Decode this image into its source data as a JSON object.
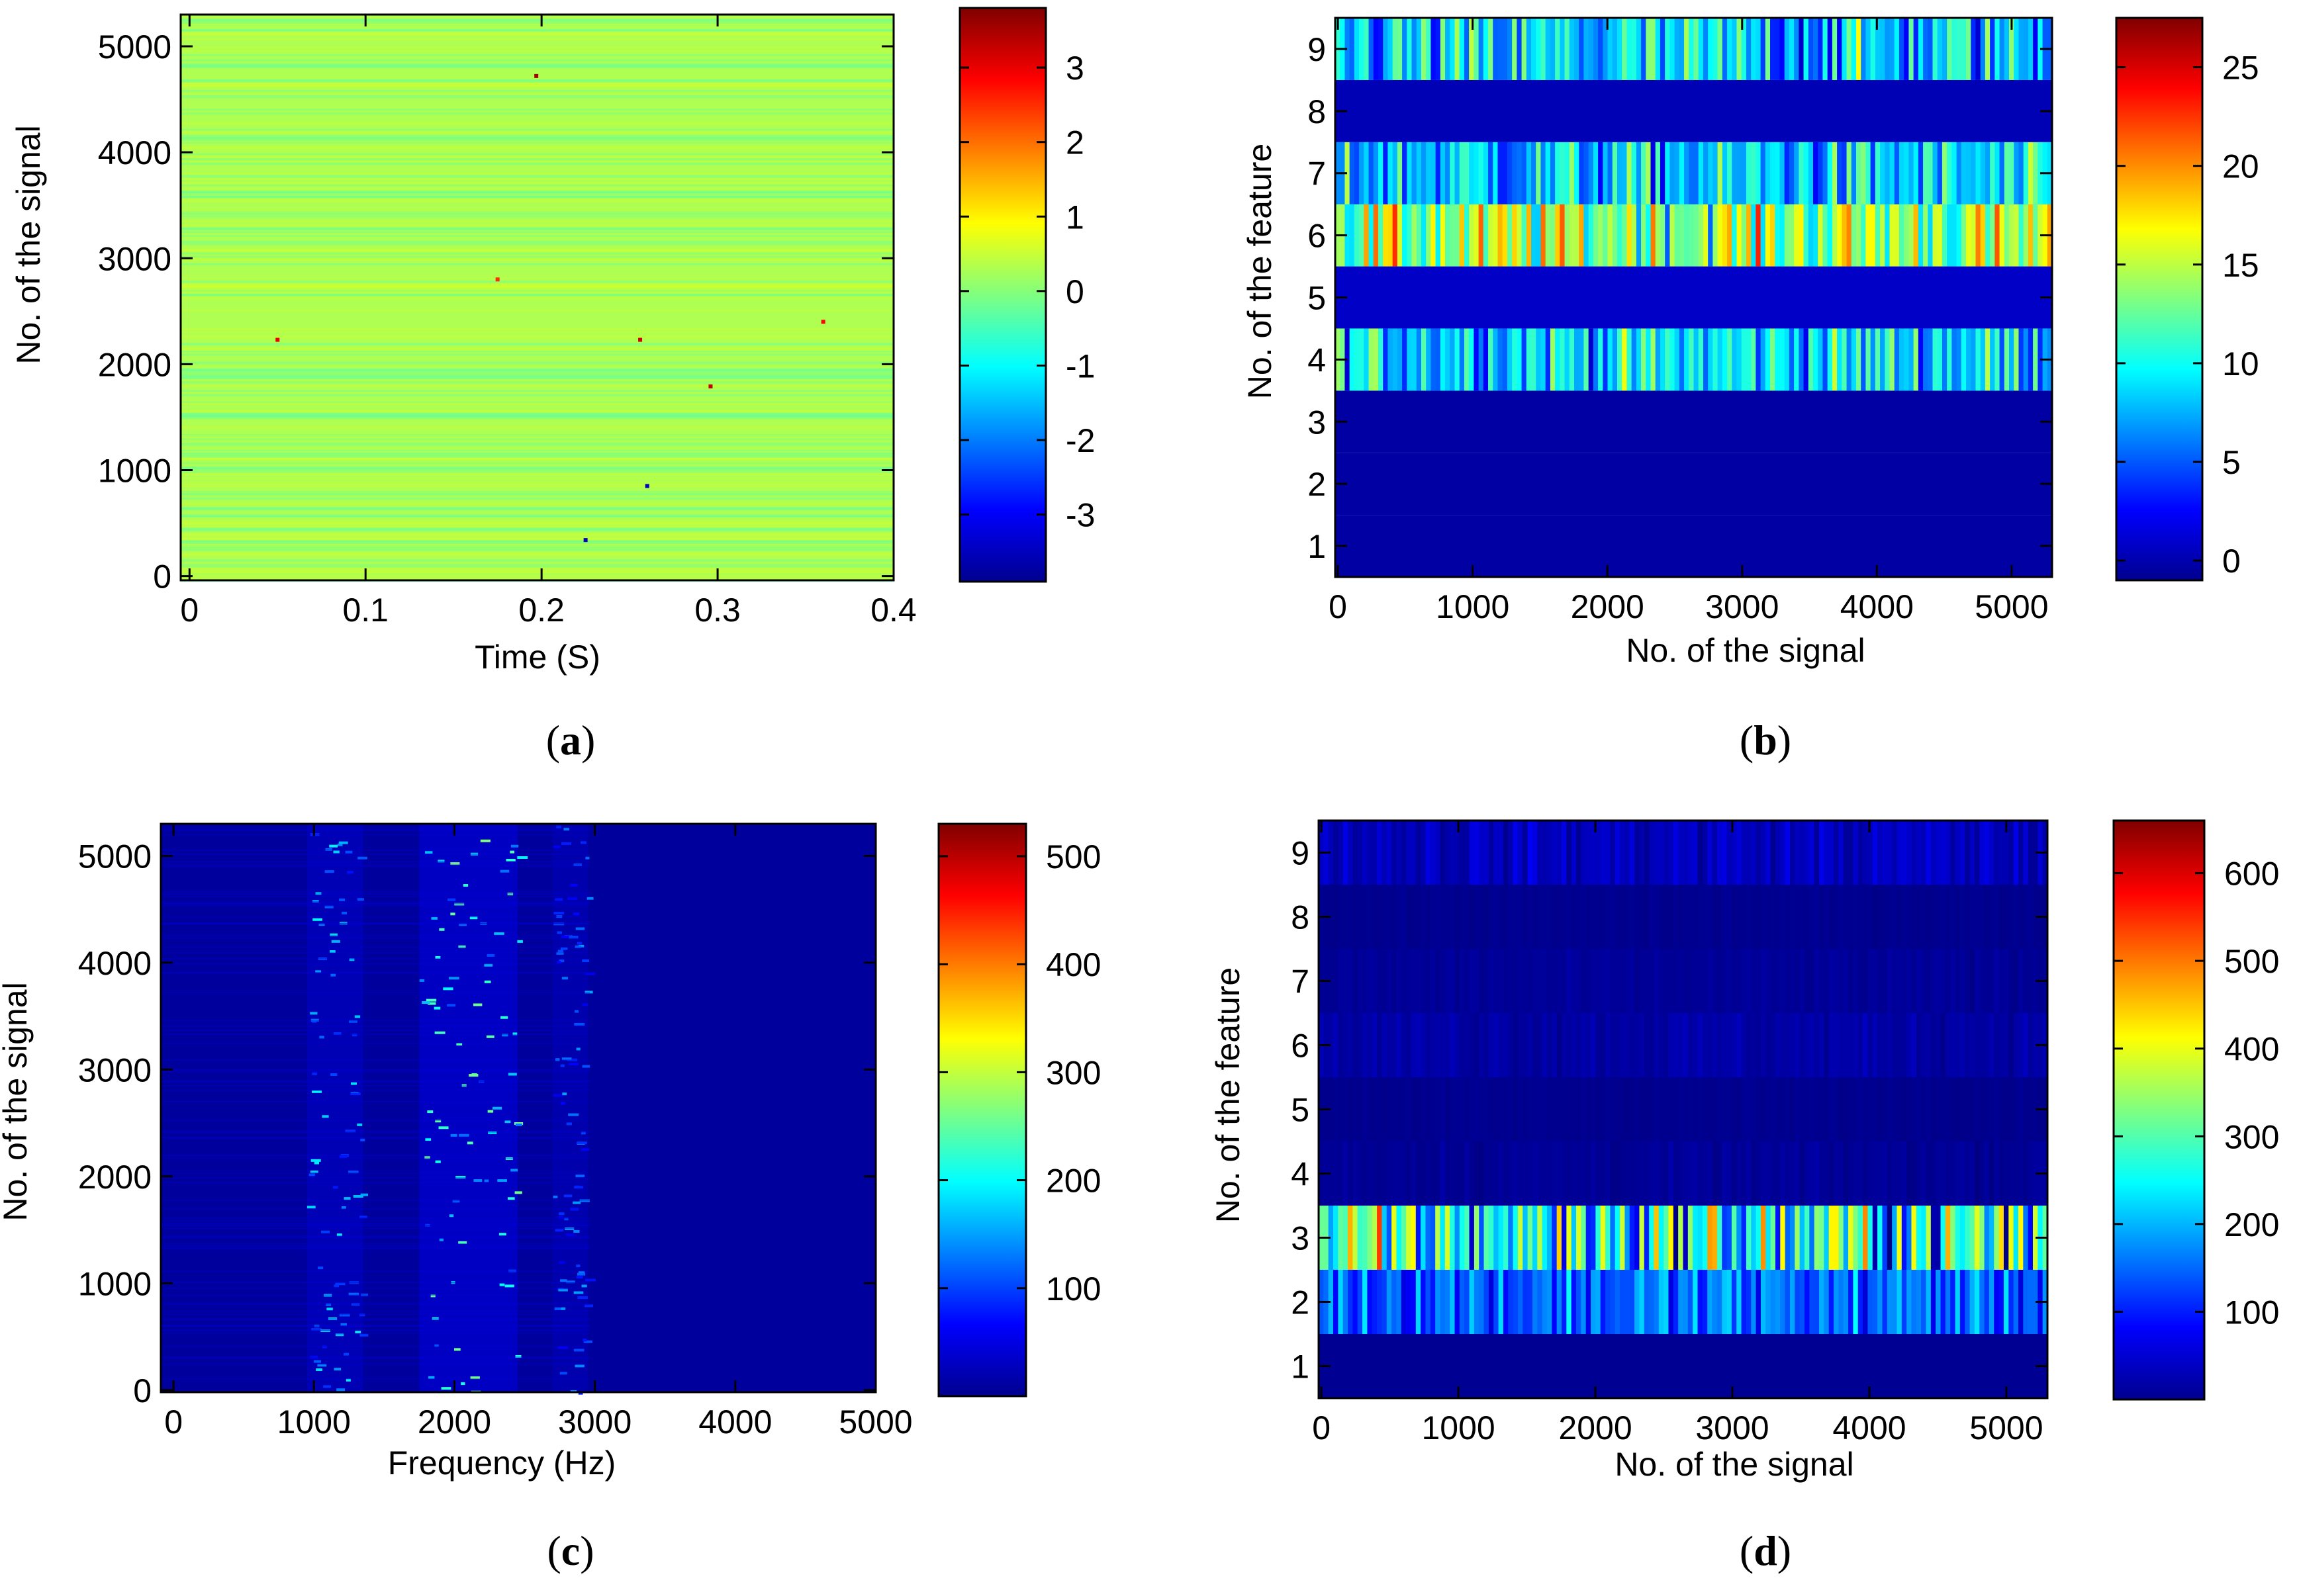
{
  "chart_data": [
    {
      "type": "heatmap",
      "panel": "a",
      "caption": "(a)",
      "caption_parts": [
        "(",
        "a",
        ")"
      ],
      "xlabel": "Time (S)",
      "ylabel": "No. of the signal",
      "xlim": [
        -0.005,
        0.4
      ],
      "ylim": [
        -40,
        5300
      ],
      "xticks": [
        0,
        0.1,
        0.2,
        0.3,
        0.4
      ],
      "xtick_labels": [
        "0",
        "0.1",
        "0.2",
        "0.3",
        "0.4"
      ],
      "yticks": [
        0,
        1000,
        2000,
        3000,
        4000,
        5000
      ],
      "ytick_labels": [
        "0",
        "1000",
        "2000",
        "3000",
        "4000",
        "5000"
      ],
      "colorbar": {
        "range": [
          -3.9,
          3.8
        ],
        "ticks": [
          -3,
          -2,
          -1,
          0,
          1,
          2,
          3
        ],
        "tick_labels": [
          "-3",
          "-2",
          "-1",
          "0",
          "1",
          "2",
          "3"
        ]
      },
      "background_value": 0.3,
      "description_values": "random signal amplitude, mostly near 0 with sparse outliers",
      "outliers": [
        {
          "x": 0.197,
          "y": 4720,
          "value": 3.5
        },
        {
          "x": 0.05,
          "y": 2230,
          "value": 3.0
        },
        {
          "x": 0.256,
          "y": 2230,
          "value": 3.2
        },
        {
          "x": 0.296,
          "y": 1790,
          "value": 3.3
        },
        {
          "x": 0.26,
          "y": 850,
          "value": -3.4
        },
        {
          "x": 0.225,
          "y": 340,
          "value": -3.5
        },
        {
          "x": 0.175,
          "y": 2800,
          "value": 2.5
        },
        {
          "x": 0.36,
          "y": 2400,
          "value": 2.8
        }
      ]
    },
    {
      "type": "heatmap",
      "panel": "b",
      "caption": "(b)",
      "caption_parts": [
        "(",
        "b",
        ")"
      ],
      "xlabel": "No. of the signal",
      "ylabel": "No. of the feature",
      "xlim": [
        -20,
        5300
      ],
      "ylim": [
        0.5,
        9.5
      ],
      "xticks": [
        0,
        1000,
        2000,
        3000,
        4000,
        5000
      ],
      "xtick_labels": [
        "0",
        "1000",
        "2000",
        "3000",
        "4000",
        "5000"
      ],
      "yticks": [
        1,
        2,
        3,
        4,
        5,
        6,
        7,
        8,
        9
      ],
      "ytick_labels": [
        "1",
        "2",
        "3",
        "4",
        "5",
        "6",
        "7",
        "8",
        "9"
      ],
      "colorbar": {
        "range": [
          -1,
          27.5
        ],
        "ticks": [
          0,
          5,
          10,
          15,
          20,
          25
        ],
        "tick_labels": [
          "0",
          "5",
          "10",
          "15",
          "20",
          "25"
        ]
      },
      "features": [
        {
          "feature": 1,
          "mean": 0,
          "spread": 0
        },
        {
          "feature": 2,
          "mean": 0,
          "spread": 0
        },
        {
          "feature": 3,
          "mean": 0,
          "spread": 0
        },
        {
          "feature": 4,
          "mean": 9,
          "spread": 6
        },
        {
          "feature": 5,
          "mean": 1,
          "spread": 0
        },
        {
          "feature": 6,
          "mean": 14,
          "spread": 7
        },
        {
          "feature": 7,
          "mean": 8,
          "spread": 6
        },
        {
          "feature": 8,
          "mean": 0.5,
          "spread": 0
        },
        {
          "feature": 9,
          "mean": 8,
          "spread": 7
        }
      ]
    },
    {
      "type": "heatmap",
      "panel": "c",
      "caption": "(c)",
      "caption_parts": [
        "(",
        "c",
        ")"
      ],
      "xlabel": "Frequency (Hz)",
      "ylabel": "No. of the signal",
      "xlim": [
        -90,
        5000
      ],
      "ylim": [
        -20,
        5300
      ],
      "xticks": [
        0,
        1000,
        2000,
        3000,
        4000,
        5000
      ],
      "xtick_labels": [
        "0",
        "1000",
        "2000",
        "3000",
        "4000",
        "5000"
      ],
      "yticks": [
        0,
        1000,
        2000,
        3000,
        4000,
        5000
      ],
      "ytick_labels": [
        "0",
        "1000",
        "2000",
        "3000",
        "4000",
        "5000"
      ],
      "colorbar": {
        "range": [
          0,
          530
        ],
        "ticks": [
          100,
          200,
          300,
          400,
          500
        ],
        "tick_labels": [
          "100",
          "200",
          "300",
          "400",
          "500"
        ]
      },
      "background_value": 15,
      "energy_bands_hz": [
        {
          "from": 950,
          "to": 1350,
          "level": 70
        },
        {
          "from": 1750,
          "to": 2450,
          "level": 95
        },
        {
          "from": 2700,
          "to": 2950,
          "level": 55
        }
      ]
    },
    {
      "type": "heatmap",
      "panel": "d",
      "caption": "(d)",
      "caption_parts": [
        "(",
        "d",
        ")"
      ],
      "xlabel": "No. of the signal",
      "ylabel": "No. of the feature",
      "xlim": [
        -20,
        5300
      ],
      "ylim": [
        0.5,
        9.5
      ],
      "xticks": [
        0,
        1000,
        2000,
        3000,
        4000,
        5000
      ],
      "xtick_labels": [
        "0",
        "1000",
        "2000",
        "3000",
        "4000",
        "5000"
      ],
      "yticks": [
        1,
        2,
        3,
        4,
        5,
        6,
        7,
        8,
        9
      ],
      "ytick_labels": [
        "1",
        "2",
        "3",
        "4",
        "5",
        "6",
        "7",
        "8",
        "9"
      ],
      "colorbar": {
        "range": [
          0,
          660
        ],
        "ticks": [
          100,
          200,
          300,
          400,
          500,
          600
        ],
        "tick_labels": [
          "100",
          "200",
          "300",
          "400",
          "500",
          "600"
        ]
      },
      "features": [
        {
          "feature": 1,
          "mean": 12,
          "spread": 0
        },
        {
          "feature": 2,
          "mean": 150,
          "spread": 90
        },
        {
          "feature": 3,
          "mean": 260,
          "spread": 230
        },
        {
          "feature": 4,
          "mean": 15,
          "spread": 10
        },
        {
          "feature": 5,
          "mean": 10,
          "spread": 4
        },
        {
          "feature": 6,
          "mean": 25,
          "spread": 15
        },
        {
          "feature": 7,
          "mean": 15,
          "spread": 8
        },
        {
          "feature": 8,
          "mean": 10,
          "spread": 4
        },
        {
          "feature": 9,
          "mean": 40,
          "spread": 30
        }
      ]
    }
  ]
}
